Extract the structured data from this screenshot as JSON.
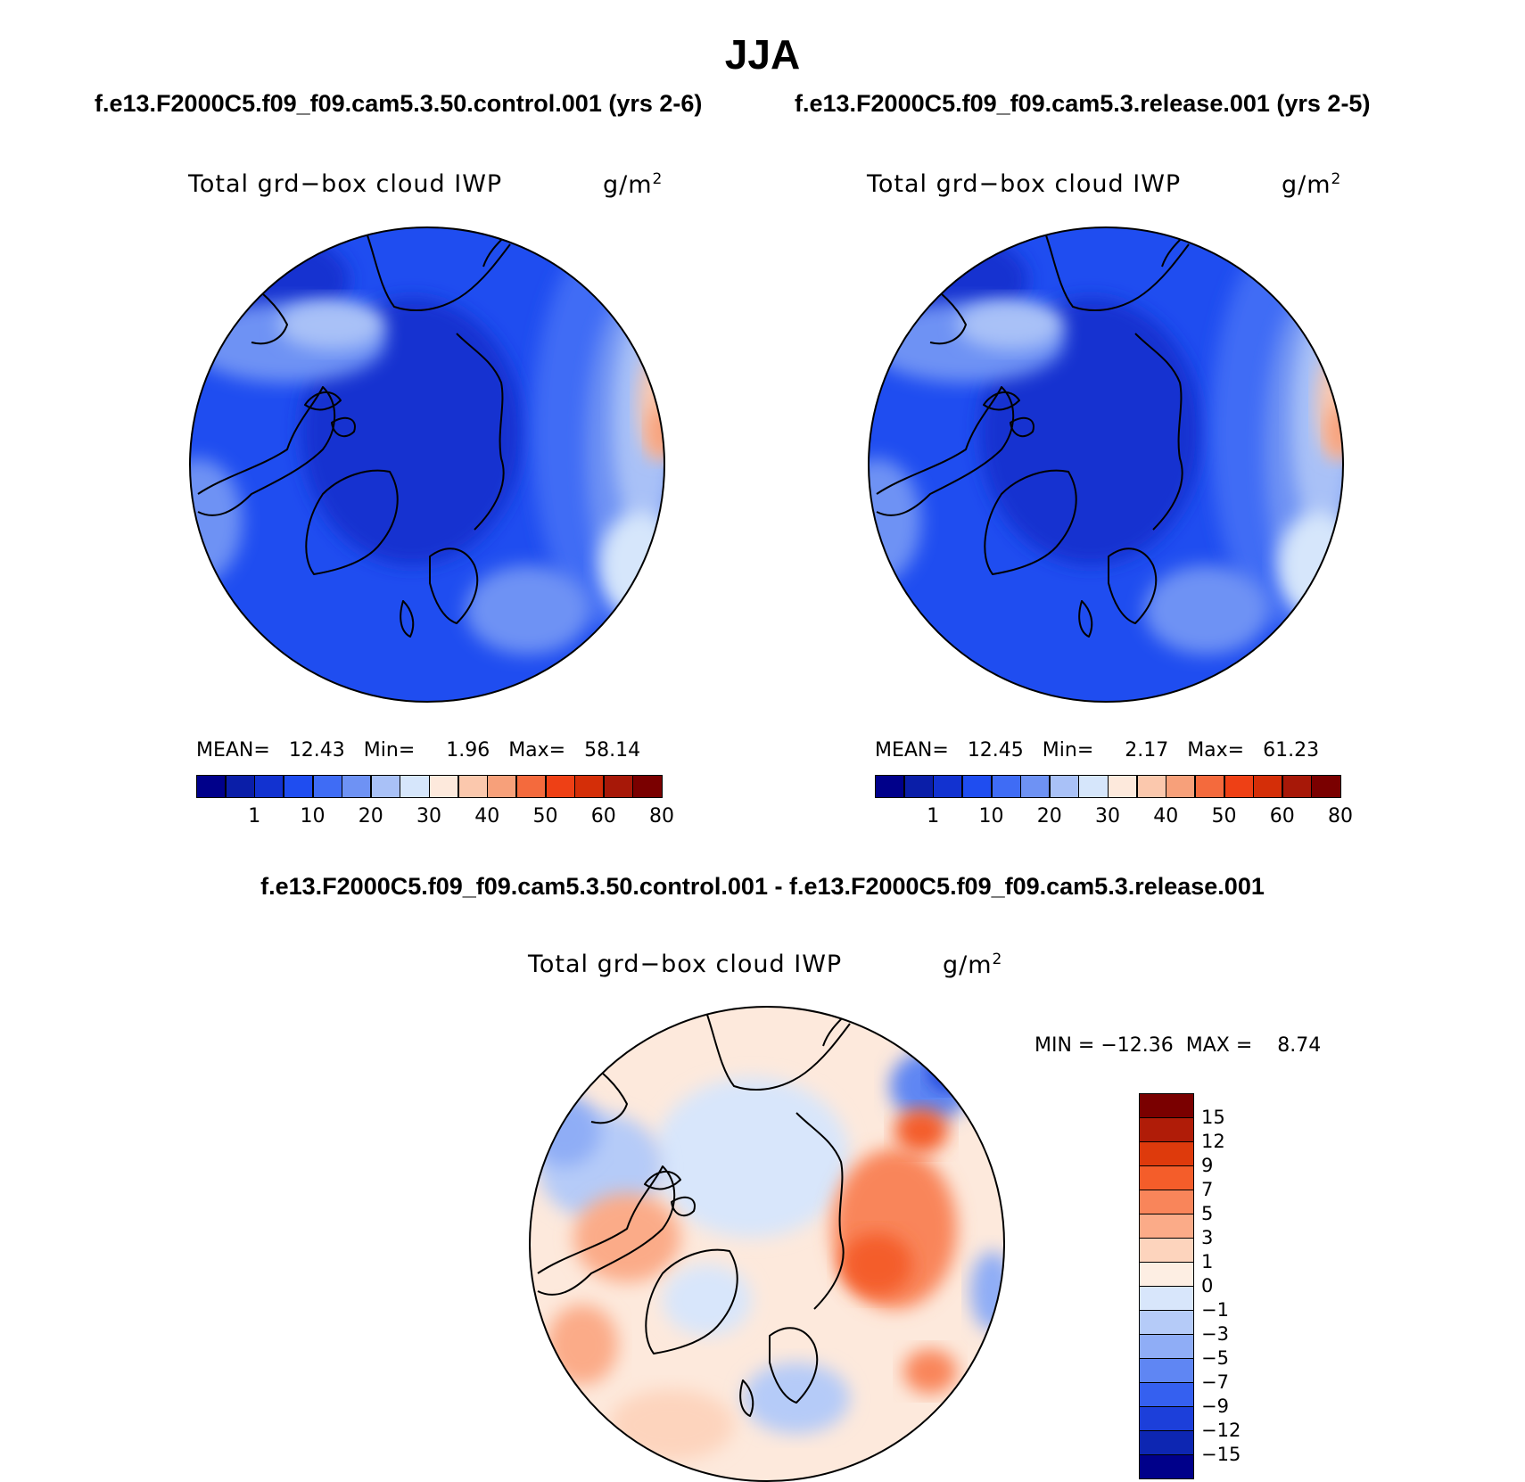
{
  "figure": {
    "season": "JJA",
    "left_case_title": "f.e13.F2000C5.f09_f09.cam5.3.50.control.001 (yrs 2-6)",
    "right_case_title": "f.e13.F2000C5.f09_f09.cam5.3.release.001 (yrs 2-5)",
    "diff_title": "f.e13.F2000C5.f09_f09.cam5.3.50.control.001 - f.e13.F2000C5.f09_f09.cam5.3.release.001"
  },
  "panels": [
    {
      "variable": "Total grd−box cloud IWP",
      "units": "g/m",
      "units_exponent": "2",
      "stats": {
        "mean_label": "MEAN=",
        "mean": "12.43",
        "min_label": "Min=",
        "min": "1.96",
        "max_label": "Max=",
        "max": "58.14"
      },
      "mean_field_level": 0.15
    },
    {
      "variable": "Total grd−box cloud IWP",
      "units": "g/m",
      "units_exponent": "2",
      "stats": {
        "mean_label": "MEAN=",
        "mean": "12.45",
        "min_label": "Min=",
        "min": "2.17",
        "max_label": "Max=",
        "max": "61.23"
      },
      "mean_field_level": 0.16
    },
    {
      "variable": "Total grd−box cloud IWP",
      "units": "g/m",
      "units_exponent": "2",
      "stats_text": "MIN = −12.36  MAX =    8.74"
    }
  ],
  "colorbar_main": {
    "tick_labels": [
      "1",
      "10",
      "20",
      "30",
      "40",
      "50",
      "60",
      "80"
    ],
    "colors": [
      "#00008a",
      "#0a1ea8",
      "#1232d0",
      "#1f4df0",
      "#3f6cf5",
      "#6e92f4",
      "#a9c1f7",
      "#d6e6fb",
      "#fde9dc",
      "#fbc8ad",
      "#f7a07a",
      "#f46a3d",
      "#ee4015",
      "#d42e08",
      "#a71808",
      "#7a0000"
    ]
  },
  "colorbar_diff": {
    "tick_labels": [
      "15",
      "12",
      "9",
      "7",
      "5",
      "3",
      "1",
      "0",
      "−1",
      "−3",
      "−5",
      "−7",
      "−9",
      "−12",
      "−15"
    ],
    "colors_top_to_bottom": [
      "#7a0000",
      "#b01c08",
      "#de3a0c",
      "#f45d2a",
      "#f9855a",
      "#fbab88",
      "#fdd4bd",
      "#fdeee3",
      "#d8e6fb",
      "#b5cbf8",
      "#8fadf6",
      "#5f86f3",
      "#3560f0",
      "#1c3fda",
      "#0d26b2",
      "#00008a"
    ]
  },
  "map": {
    "land_outline_color": "#000000",
    "background_blue": "#1f4df0",
    "diff_background": "#fde9dc"
  }
}
